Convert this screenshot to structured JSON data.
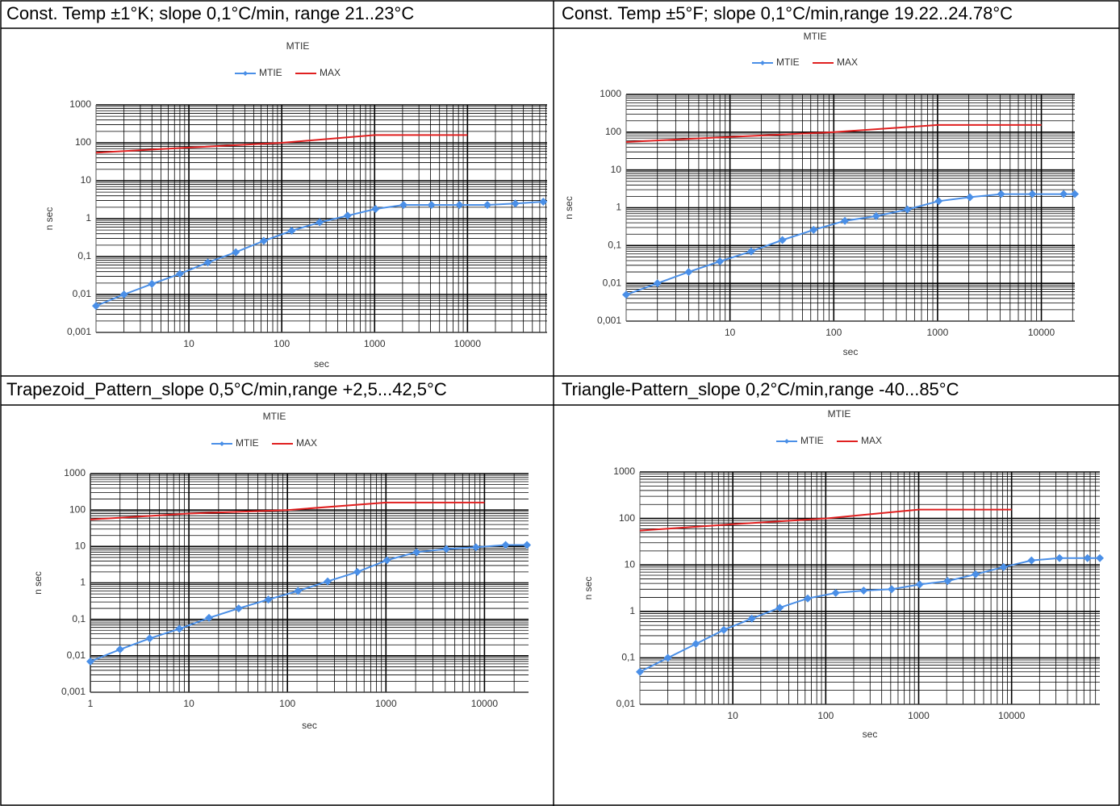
{
  "headers": [
    "Const. Temp ±1°K; slope 0,1°C/min, range 21..23°C",
    "Const. Temp ±5°F; slope 0,1°C/min,range 19.22..24.78°C",
    "Trapezoid_Pattern_slope 0,5°C/min,range +2,5...42,5°C",
    "Triangle-Pattern_slope 0,2°C/min,range -40...85°C"
  ],
  "chart_data": [
    {
      "type": "line",
      "title": "MTIE",
      "xlabel": "sec",
      "ylabel": "n sec",
      "xscale": "log",
      "yscale": "log",
      "grid": true,
      "minor_grid": true,
      "legend": "top",
      "xlim": [
        1,
        72000
      ],
      "ylim": [
        0.001,
        1000
      ],
      "xticks": [
        10,
        100,
        1000,
        10000
      ],
      "yticks": [
        {
          "value": 0.001,
          "label": "0,001"
        },
        {
          "value": 0.01,
          "label": "0,01"
        },
        {
          "value": 0.1,
          "label": "0,1"
        },
        1,
        10,
        100,
        1000
      ],
      "series": [
        {
          "name": "MTIE",
          "color": "#4a8fe7",
          "x": [
            1,
            2,
            4,
            8,
            16,
            32,
            64,
            128,
            256,
            512,
            1024,
            2048,
            4096,
            8192,
            16384,
            32768,
            65536
          ],
          "values": [
            0.005,
            0.01,
            0.019,
            0.035,
            0.07,
            0.13,
            0.26,
            0.48,
            0.8,
            1.2,
            1.8,
            2.3,
            2.3,
            2.3,
            2.3,
            2.5,
            2.8
          ]
        },
        {
          "name": "MAX",
          "color": "#e02020",
          "x": [
            1,
            10,
            100,
            1000,
            10000
          ],
          "values": [
            55,
            75,
            100,
            160,
            160
          ]
        }
      ]
    },
    {
      "type": "line",
      "title": "MTIE",
      "xlabel": "sec",
      "ylabel": "n sec",
      "xscale": "log",
      "yscale": "log",
      "grid": true,
      "minor_grid": true,
      "legend": "top",
      "xlim": [
        1,
        21000
      ],
      "ylim": [
        0.001,
        1000
      ],
      "xticks": [
        10,
        100,
        1000,
        10000
      ],
      "yticks": [
        {
          "value": 0.001,
          "label": "0,001"
        },
        {
          "value": 0.01,
          "label": "0,01"
        },
        {
          "value": 0.1,
          "label": "0,1"
        },
        1,
        10,
        100,
        1000
      ],
      "series": [
        {
          "name": "MTIE",
          "color": "#4a8fe7",
          "x": [
            1,
            2,
            4,
            8,
            16,
            32,
            64,
            128,
            256,
            512,
            1024,
            2048,
            4096,
            8192,
            16384,
            21000
          ],
          "values": [
            0.005,
            0.01,
            0.02,
            0.038,
            0.07,
            0.14,
            0.26,
            0.45,
            0.6,
            0.9,
            1.5,
            1.9,
            2.3,
            2.3,
            2.3,
            2.3
          ]
        },
        {
          "name": "MAX",
          "color": "#e02020",
          "x": [
            1,
            10,
            100,
            1000,
            10000
          ],
          "values": [
            55,
            75,
            100,
            155,
            155
          ]
        }
      ]
    },
    {
      "type": "line",
      "title": "MTIE",
      "xlabel": "sec",
      "ylabel": "n sec",
      "xscale": "log",
      "yscale": "log",
      "grid": true,
      "minor_grid": true,
      "legend": "top",
      "xlim": [
        1,
        28000
      ],
      "ylim": [
        0.001,
        1000
      ],
      "xticks": [
        1,
        10,
        100,
        1000,
        10000
      ],
      "yticks": [
        {
          "value": 0.001,
          "label": "0,001"
        },
        {
          "value": 0.01,
          "label": "0,01"
        },
        {
          "value": 0.1,
          "label": "0,1"
        },
        1,
        10,
        100,
        1000
      ],
      "series": [
        {
          "name": "MTIE",
          "color": "#4a8fe7",
          "x": [
            1,
            2,
            4,
            8,
            16,
            32,
            64,
            128,
            256,
            512,
            1024,
            2048,
            4096,
            8192,
            16384,
            27000
          ],
          "values": [
            0.007,
            0.015,
            0.03,
            0.055,
            0.11,
            0.2,
            0.35,
            0.6,
            1.1,
            2,
            4.2,
            7,
            8.5,
            9.5,
            11,
            11
          ]
        },
        {
          "name": "MAX",
          "color": "#e02020",
          "x": [
            1,
            10,
            100,
            1000,
            10000
          ],
          "values": [
            55,
            80,
            100,
            160,
            160
          ]
        }
      ]
    },
    {
      "type": "line",
      "title": "MTIE",
      "xlabel": "sec",
      "ylabel": "n sec",
      "xscale": "log",
      "yscale": "log",
      "grid": true,
      "minor_grid": true,
      "legend": "top",
      "xlim": [
        1,
        89000
      ],
      "ylim": [
        0.01,
        1000
      ],
      "xticks": [
        10,
        100,
        1000,
        10000
      ],
      "yticks": [
        {
          "value": 0.01,
          "label": "0,01"
        },
        {
          "value": 0.1,
          "label": "0,1"
        },
        1,
        10,
        100,
        1000
      ],
      "series": [
        {
          "name": "MTIE",
          "color": "#4a8fe7",
          "x": [
            1,
            2,
            4,
            8,
            16,
            32,
            64,
            128,
            256,
            512,
            1024,
            2048,
            4096,
            8192,
            16384,
            32768,
            65536,
            89000
          ],
          "values": [
            0.05,
            0.1,
            0.2,
            0.4,
            0.7,
            1.2,
            1.9,
            2.5,
            2.8,
            3,
            3.8,
            4.5,
            6.3,
            9,
            12.5,
            14,
            14,
            14
          ]
        },
        {
          "name": "MAX",
          "color": "#e02020",
          "x": [
            1,
            10,
            100,
            1000,
            10000
          ],
          "values": [
            55,
            75,
            100,
            155,
            155
          ]
        }
      ]
    }
  ]
}
